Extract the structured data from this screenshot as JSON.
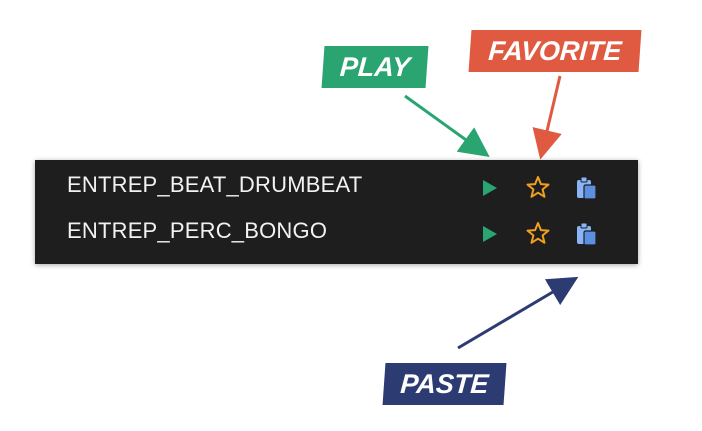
{
  "callouts": {
    "play": "PLAY",
    "favorite": "FAVORITE",
    "paste": "PASTE"
  },
  "tracks": [
    {
      "name": "ENTREP_BEAT_DRUMBEAT",
      "icons": [
        "play-icon",
        "star-icon",
        "paste-icon"
      ]
    },
    {
      "name": "ENTREP_PERC_BONGO",
      "icons": [
        "play-icon",
        "star-icon",
        "paste-icon"
      ]
    }
  ],
  "colors": {
    "panel_bg": "#1e1e1e",
    "play_green": "#2aa572",
    "favorite_red": "#e05a42",
    "paste_navy": "#2d3b73",
    "star_orange": "#f0a020",
    "paste_blue": "#8ab4f8"
  }
}
